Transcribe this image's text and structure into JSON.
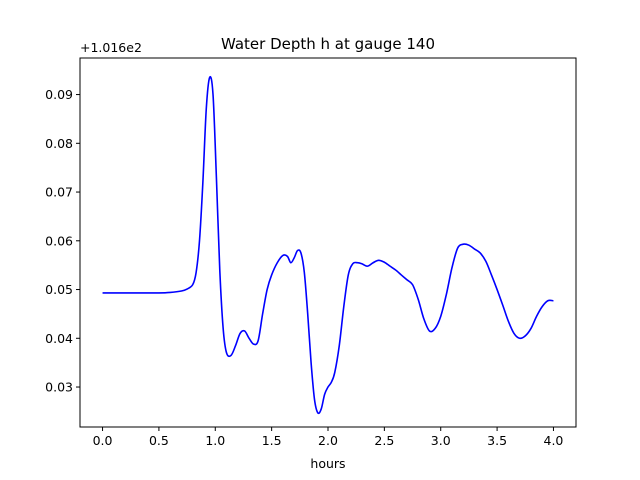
{
  "chart_data": {
    "type": "line",
    "title": "Water Depth h at gauge 140",
    "xlabel": "hours",
    "ylabel": "",
    "y_offset_label": "+1.016e2",
    "y_offset_value": 101.6,
    "xlim": [
      -0.2,
      4.2
    ],
    "ylim": [
      0.0218,
      0.0975
    ],
    "x_ticks": [
      0.0,
      0.5,
      1.0,
      1.5,
      2.0,
      2.5,
      3.0,
      3.5,
      4.0
    ],
    "x_tick_labels": [
      "0.0",
      "0.5",
      "1.0",
      "1.5",
      "2.0",
      "2.5",
      "3.0",
      "3.5",
      "4.0"
    ],
    "y_ticks": [
      0.03,
      0.04,
      0.05,
      0.06,
      0.07,
      0.08,
      0.09
    ],
    "y_tick_labels": [
      "0.03",
      "0.04",
      "0.05",
      "0.06",
      "0.07",
      "0.08",
      "0.09"
    ],
    "grid": false,
    "series": [
      {
        "color": "#0000ff",
        "x": [
          0.0,
          0.3,
          0.5,
          0.6,
          0.7,
          0.75,
          0.8,
          0.83,
          0.86,
          0.89,
          0.92,
          0.95,
          0.98,
          1.01,
          1.04,
          1.07,
          1.1,
          1.14,
          1.18,
          1.22,
          1.26,
          1.3,
          1.34,
          1.38,
          1.42,
          1.46,
          1.5,
          1.55,
          1.6,
          1.64,
          1.67,
          1.7,
          1.73,
          1.76,
          1.79,
          1.82,
          1.85,
          1.88,
          1.91,
          1.94,
          1.97,
          2.0,
          2.03,
          2.06,
          2.1,
          2.14,
          2.18,
          2.22,
          2.26,
          2.3,
          2.35,
          2.4,
          2.45,
          2.5,
          2.55,
          2.6,
          2.65,
          2.7,
          2.75,
          2.8,
          2.85,
          2.9,
          2.95,
          3.0,
          3.05,
          3.1,
          3.15,
          3.2,
          3.25,
          3.3,
          3.35,
          3.4,
          3.45,
          3.5,
          3.55,
          3.6,
          3.65,
          3.7,
          3.75,
          3.8,
          3.85,
          3.9,
          3.95,
          4.0
        ],
        "y": [
          0.0493,
          0.0493,
          0.0493,
          0.0494,
          0.0497,
          0.0501,
          0.051,
          0.0535,
          0.06,
          0.072,
          0.087,
          0.0935,
          0.09,
          0.073,
          0.054,
          0.042,
          0.037,
          0.0365,
          0.0385,
          0.041,
          0.0415,
          0.04,
          0.0388,
          0.0395,
          0.045,
          0.05,
          0.053,
          0.0555,
          0.057,
          0.0568,
          0.0555,
          0.0565,
          0.058,
          0.0575,
          0.0535,
          0.045,
          0.035,
          0.0275,
          0.0247,
          0.0255,
          0.0285,
          0.03,
          0.031,
          0.033,
          0.0385,
          0.0465,
          0.053,
          0.0553,
          0.0555,
          0.0553,
          0.0548,
          0.0555,
          0.056,
          0.0556,
          0.0548,
          0.054,
          0.053,
          0.052,
          0.051,
          0.048,
          0.044,
          0.0415,
          0.042,
          0.0445,
          0.049,
          0.0545,
          0.0585,
          0.0593,
          0.0591,
          0.0583,
          0.0575,
          0.0558,
          0.053,
          0.05,
          0.0468,
          0.0435,
          0.041,
          0.04,
          0.0405,
          0.042,
          0.0445,
          0.0465,
          0.0477,
          0.0477
        ]
      }
    ]
  }
}
